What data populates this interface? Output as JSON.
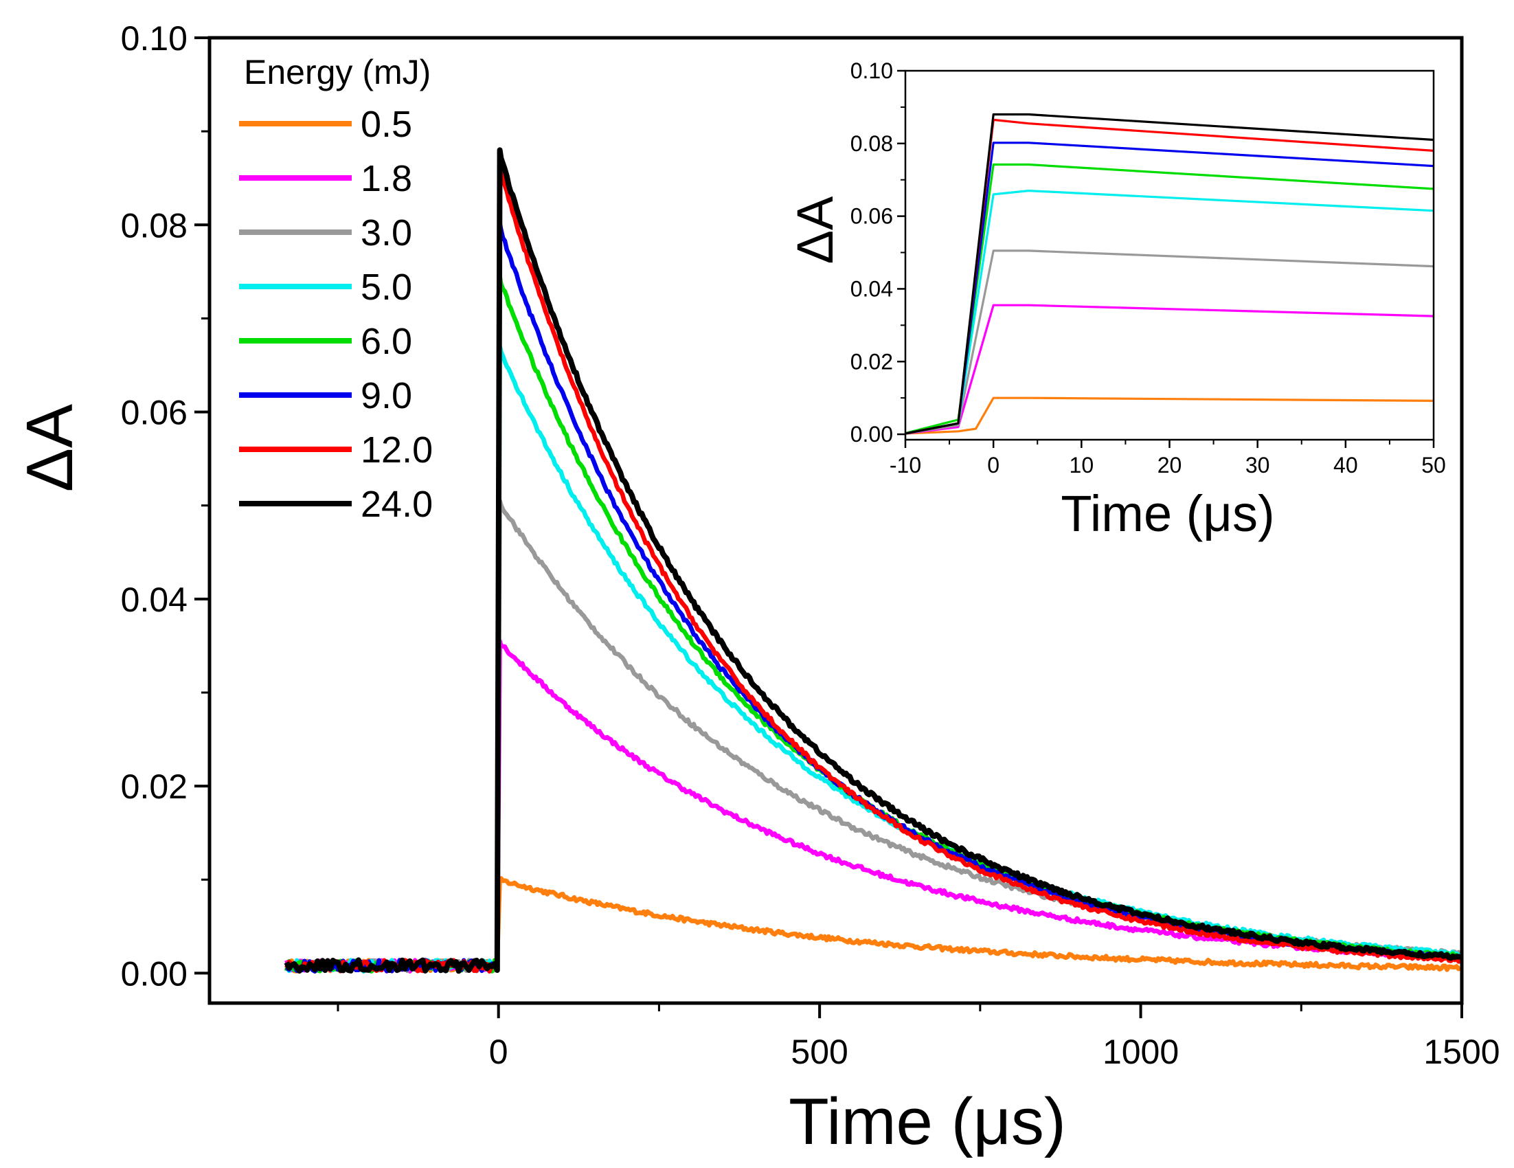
{
  "chart_data": {
    "type": "line",
    "main": {
      "xlabel": "Time (μs)",
      "ylabel": "ΔA",
      "xlim": [
        -450,
        1500
      ],
      "ylim": [
        -0.0032,
        0.1
      ],
      "xticks": [
        0,
        500,
        1000,
        1500
      ],
      "xtick_labels": [
        "0",
        "500",
        "1000",
        "1500"
      ],
      "xminor": [
        -250,
        250,
        750,
        1250
      ],
      "yticks": [
        0.0,
        0.02,
        0.04,
        0.06,
        0.08,
        0.1
      ],
      "ytick_labels": [
        "0.00",
        "0.02",
        "0.04",
        "0.06",
        "0.08",
        "0.10"
      ],
      "yminor": [
        0.01,
        0.03,
        0.05,
        0.07,
        0.09
      ]
    },
    "legend": {
      "title": "Energy (mJ)",
      "position": "top-left"
    },
    "series": [
      {
        "name": "0.5",
        "color": "#ff7f0e",
        "peak": 0.01,
        "tau": 520
      },
      {
        "name": "1.8",
        "color": "#ff00ff",
        "peak": 0.0355,
        "tau": 490
      },
      {
        "name": "3.0",
        "color": "#999999",
        "peak": 0.0505,
        "tau": 470
      },
      {
        "name": "5.0",
        "color": "#00eeee",
        "peak": 0.067,
        "tau": 430
      },
      {
        "name": "6.0",
        "color": "#00dd00",
        "peak": 0.0745,
        "tau": 405
      },
      {
        "name": "9.0",
        "color": "#0000ee",
        "peak": 0.0802,
        "tau": 385
      },
      {
        "name": "12.0",
        "color": "#ff0000",
        "peak": 0.0865,
        "tau": 365
      },
      {
        "name": "24.0",
        "color": "#000000",
        "peak": 0.088,
        "tau": 380
      }
    ],
    "inset": {
      "xlabel": "Time (μs)",
      "ylabel": "ΔA",
      "xlim": [
        -10,
        50
      ],
      "ylim": [
        -0.0015,
        0.1
      ],
      "xticks": [
        -10,
        0,
        10,
        20,
        30,
        40,
        50
      ],
      "xtick_labels": [
        "-10",
        "0",
        "10",
        "20",
        "30",
        "40",
        "50"
      ],
      "yticks": [
        0.0,
        0.02,
        0.04,
        0.06,
        0.08,
        0.1
      ],
      "ytick_labels": [
        "0.00",
        "0.02",
        "0.04",
        "0.06",
        "0.08",
        "0.10"
      ],
      "series_points": [
        {
          "name": "0.5",
          "x": [
            -10,
            -4,
            -2,
            0,
            4,
            50
          ],
          "y": [
            0.0002,
            0.0008,
            0.0015,
            0.01,
            0.01,
            0.0092
          ]
        },
        {
          "name": "1.8",
          "x": [
            -10,
            -4,
            0,
            4,
            50
          ],
          "y": [
            0.0002,
            0.002,
            0.0355,
            0.0355,
            0.0325
          ]
        },
        {
          "name": "3.0",
          "x": [
            -10,
            -4,
            0,
            4,
            50
          ],
          "y": [
            0.0002,
            0.0025,
            0.0505,
            0.0505,
            0.0462
          ]
        },
        {
          "name": "5.0",
          "x": [
            -10,
            -4,
            0,
            4,
            50
          ],
          "y": [
            0.0002,
            0.003,
            0.066,
            0.067,
            0.0615
          ]
        },
        {
          "name": "6.0",
          "x": [
            -10,
            -4,
            0,
            4,
            50
          ],
          "y": [
            0.0003,
            0.004,
            0.0742,
            0.0742,
            0.0675
          ]
        },
        {
          "name": "9.0",
          "x": [
            -10,
            -4,
            0,
            4,
            50
          ],
          "y": [
            0.0002,
            0.003,
            0.0802,
            0.0802,
            0.0738
          ]
        },
        {
          "name": "12.0",
          "x": [
            -10,
            -4,
            0,
            4,
            50
          ],
          "y": [
            0.0002,
            0.003,
            0.0865,
            0.0855,
            0.078
          ]
        },
        {
          "name": "24.0",
          "x": [
            -10,
            -4,
            0,
            4,
            50
          ],
          "y": [
            0.0002,
            0.003,
            0.088,
            0.088,
            0.081
          ]
        }
      ]
    }
  }
}
